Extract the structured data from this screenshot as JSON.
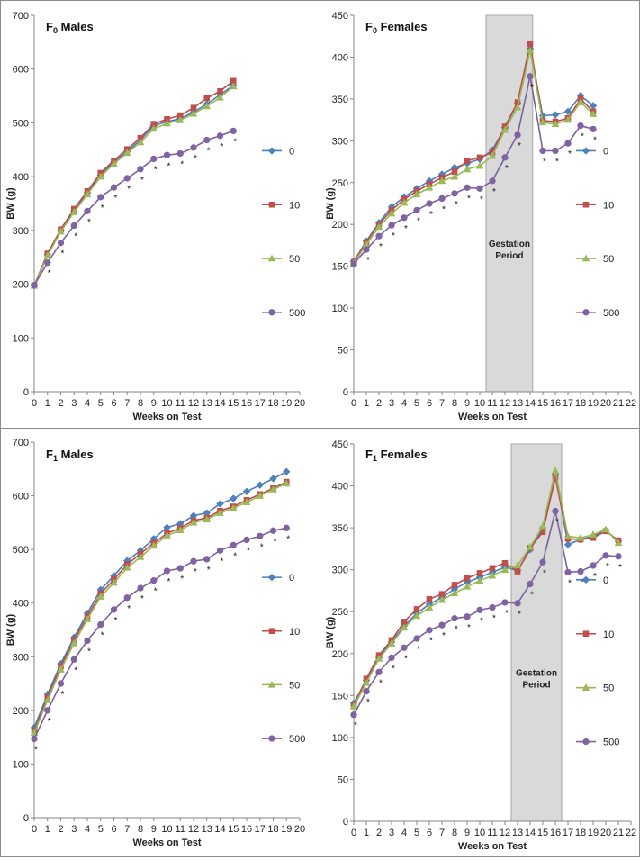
{
  "chart_data": [
    {
      "type": "line",
      "title": "F0 Males",
      "title_main": "F",
      "title_sub": "0",
      "title_rest": " Males",
      "xlabel": "Weeks on Test",
      "ylabel": "BW (g)",
      "ylim": [
        0,
        700
      ],
      "yticks": [
        0,
        100,
        200,
        300,
        400,
        500,
        600,
        700
      ],
      "xlim": [
        0,
        20
      ],
      "x_tick_labels": [
        "0",
        "1",
        "2",
        "3",
        "4",
        "5",
        "6",
        "7",
        "8",
        "9",
        "10",
        "11",
        "12",
        "13",
        "14",
        "15",
        "16",
        "17",
        "18",
        "19",
        "20"
      ],
      "legend_position": "right",
      "gestation": null,
      "series": [
        {
          "name": "0",
          "x": [
            0,
            1,
            2,
            3,
            4,
            5,
            6,
            7,
            8,
            9,
            10,
            11,
            12,
            13,
            14,
            15
          ],
          "values": [
            197,
            255,
            300,
            336,
            370,
            403,
            427,
            447,
            468,
            495,
            502,
            508,
            520,
            535,
            552,
            570
          ]
        },
        {
          "name": "10",
          "x": [
            0,
            1,
            2,
            3,
            4,
            5,
            6,
            7,
            8,
            9,
            10,
            11,
            12,
            13,
            14,
            15
          ],
          "values": [
            198,
            257,
            302,
            340,
            373,
            407,
            430,
            451,
            472,
            498,
            507,
            514,
            528,
            546,
            559,
            578
          ]
        },
        {
          "name": "50",
          "x": [
            0,
            1,
            2,
            3,
            4,
            5,
            6,
            7,
            8,
            9,
            10,
            11,
            12,
            13,
            14,
            15
          ],
          "values": [
            197,
            253,
            298,
            334,
            367,
            400,
            424,
            444,
            464,
            489,
            499,
            505,
            517,
            531,
            547,
            568
          ]
        },
        {
          "name": "500",
          "x": [
            0,
            1,
            2,
            3,
            4,
            5,
            6,
            7,
            8,
            9,
            10,
            11,
            12,
            13,
            14,
            15
          ],
          "values": [
            198,
            240,
            277,
            309,
            336,
            362,
            380,
            397,
            414,
            433,
            440,
            443,
            454,
            468,
            476,
            485
          ]
        }
      ],
      "significance_markers": {
        "symbol": "*",
        "x": [
          1,
          2,
          3,
          4,
          5,
          6,
          7,
          8,
          9,
          10,
          11,
          12,
          13,
          14,
          15
        ]
      }
    },
    {
      "type": "line",
      "title": "F0 Females",
      "title_main": "F",
      "title_sub": "0",
      "title_rest": " Females",
      "xlabel": "Weeks on Test",
      "ylabel": "BW (g)",
      "ylim": [
        0,
        450
      ],
      "yticks": [
        0,
        50,
        100,
        150,
        200,
        250,
        300,
        350,
        400,
        450
      ],
      "xlim": [
        0,
        22
      ],
      "x_tick_labels": [
        "0",
        "1",
        "2",
        "3",
        "4",
        "5",
        "6",
        "7",
        "8",
        "9",
        "10",
        "11",
        "12",
        "13",
        "14",
        "15",
        "16",
        "17",
        "18",
        "19",
        "20",
        "21",
        "22"
      ],
      "legend_position": "right",
      "gestation": {
        "label_line1": "Gestation",
        "label_line2": "Period",
        "x_start": 10.5,
        "x_end": 14.2
      },
      "series": [
        {
          "name": "0",
          "x": [
            0,
            1,
            2,
            3,
            4,
            5,
            6,
            7,
            8,
            9,
            10,
            11,
            12,
            13,
            14,
            15,
            16,
            17,
            18,
            19
          ],
          "values": [
            156,
            180,
            202,
            221,
            233,
            243,
            252,
            260,
            268,
            273,
            278,
            289,
            316,
            345,
            410,
            330,
            331,
            335,
            354,
            342
          ]
        },
        {
          "name": "10",
          "x": [
            0,
            1,
            2,
            3,
            4,
            5,
            6,
            7,
            8,
            9,
            10,
            11,
            12,
            13,
            14,
            15,
            16,
            17,
            18,
            19
          ],
          "values": [
            155,
            179,
            200,
            217,
            230,
            240,
            248,
            256,
            263,
            276,
            280,
            286,
            317,
            346,
            416,
            324,
            323,
            327,
            350,
            335
          ]
        },
        {
          "name": "50",
          "x": [
            0,
            1,
            2,
            3,
            4,
            5,
            6,
            7,
            8,
            9,
            10,
            11,
            12,
            13,
            14,
            15,
            16,
            17,
            18,
            19
          ],
          "values": [
            154,
            176,
            197,
            213,
            226,
            236,
            244,
            252,
            257,
            266,
            270,
            282,
            313,
            340,
            408,
            322,
            320,
            325,
            346,
            332
          ]
        },
        {
          "name": "500",
          "x": [
            0,
            1,
            2,
            3,
            4,
            5,
            6,
            7,
            8,
            9,
            10,
            11,
            12,
            13,
            14,
            15,
            16,
            17,
            18,
            19
          ],
          "values": [
            153,
            170,
            186,
            199,
            208,
            217,
            225,
            231,
            237,
            244,
            243,
            252,
            280,
            307,
            377,
            288,
            288,
            297,
            318,
            314
          ]
        }
      ],
      "significance_markers": {
        "symbol": "*",
        "x": [
          1,
          2,
          3,
          4,
          5,
          6,
          7,
          8,
          9,
          10,
          11,
          12,
          13,
          14,
          15,
          16,
          17,
          18,
          19
        ]
      }
    },
    {
      "type": "line",
      "title": "F1 Males",
      "title_main": "F",
      "title_sub": "1",
      "title_rest": " Males",
      "xlabel": "Weeks on Test",
      "ylabel": "BW (g)",
      "ylim": [
        0,
        700
      ],
      "yticks": [
        0,
        100,
        200,
        300,
        400,
        500,
        600,
        700
      ],
      "xlim": [
        0,
        20
      ],
      "x_tick_labels": [
        "0",
        "1",
        "2",
        "3",
        "4",
        "5",
        "6",
        "7",
        "8",
        "9",
        "10",
        "11",
        "12",
        "13",
        "14",
        "15",
        "16",
        "17",
        "18",
        "19",
        "20"
      ],
      "legend_position": "right",
      "gestation": null,
      "series": [
        {
          "name": "0",
          "x": [
            0,
            1,
            2,
            3,
            4,
            5,
            6,
            7,
            8,
            9,
            10,
            11,
            12,
            13,
            14,
            15,
            16,
            17,
            18,
            19
          ],
          "values": [
            168,
            230,
            287,
            336,
            381,
            425,
            451,
            479,
            498,
            520,
            541,
            548,
            563,
            568,
            585,
            595,
            608,
            620,
            632,
            645
          ]
        },
        {
          "name": "10",
          "x": [
            0,
            1,
            2,
            3,
            4,
            5,
            6,
            7,
            8,
            9,
            10,
            11,
            12,
            13,
            14,
            15,
            16,
            17,
            18,
            19
          ],
          "values": [
            162,
            224,
            282,
            331,
            375,
            418,
            444,
            472,
            492,
            512,
            530,
            540,
            554,
            559,
            572,
            580,
            592,
            603,
            614,
            626
          ]
        },
        {
          "name": "50",
          "x": [
            0,
            1,
            2,
            3,
            4,
            5,
            6,
            7,
            8,
            9,
            10,
            11,
            12,
            13,
            14,
            15,
            16,
            17,
            18,
            19
          ],
          "values": [
            158,
            219,
            276,
            325,
            370,
            412,
            438,
            466,
            486,
            507,
            526,
            536,
            550,
            556,
            568,
            577,
            588,
            600,
            612,
            623
          ]
        },
        {
          "name": "500",
          "x": [
            0,
            1,
            2,
            3,
            4,
            5,
            6,
            7,
            8,
            9,
            10,
            11,
            12,
            13,
            14,
            15,
            16,
            17,
            18,
            19
          ],
          "values": [
            147,
            200,
            250,
            295,
            330,
            360,
            388,
            410,
            428,
            442,
            460,
            465,
            478,
            482,
            498,
            508,
            518,
            525,
            535,
            540
          ]
        }
      ],
      "significance_markers": {
        "symbol": "*",
        "x": [
          0,
          1,
          2,
          3,
          4,
          5,
          6,
          7,
          8,
          9,
          10,
          11,
          12,
          13,
          14,
          15,
          16,
          17,
          18,
          19
        ]
      }
    },
    {
      "type": "line",
      "title": "F1 Females",
      "title_main": "F",
      "title_sub": "1",
      "title_rest": " Females",
      "xlabel": "Weeks on Test",
      "ylabel": "BW (g)",
      "ylim": [
        0,
        450
      ],
      "yticks": [
        0,
        50,
        100,
        150,
        200,
        250,
        300,
        350,
        400,
        450
      ],
      "xlim": [
        0,
        22
      ],
      "x_tick_labels": [
        "0",
        "1",
        "2",
        "3",
        "4",
        "5",
        "6",
        "7",
        "8",
        "9",
        "10",
        "11",
        "12",
        "13",
        "14",
        "15",
        "16",
        "17",
        "18",
        "19",
        "20",
        "21",
        "22"
      ],
      "legend_position": "right",
      "gestation": {
        "label_line1": "Gestation",
        "label_line2": "Period",
        "x_start": 12.5,
        "x_end": 16.5
      },
      "series": [
        {
          "name": "0",
          "x": [
            0,
            1,
            2,
            3,
            4,
            5,
            6,
            7,
            8,
            9,
            10,
            11,
            12,
            13,
            14,
            15,
            16,
            17,
            18,
            19,
            20,
            21
          ],
          "values": [
            141,
            168,
            195,
            214,
            233,
            248,
            259,
            267,
            277,
            285,
            291,
            297,
            303,
            299,
            324,
            350,
            414,
            330,
            336,
            340,
            347,
            334
          ]
        },
        {
          "name": "10",
          "x": [
            0,
            1,
            2,
            3,
            4,
            5,
            6,
            7,
            8,
            9,
            10,
            11,
            12,
            13,
            14,
            15,
            16,
            17,
            18,
            19,
            20,
            21
          ],
          "values": [
            139,
            170,
            198,
            216,
            238,
            253,
            265,
            271,
            282,
            290,
            296,
            302,
            308,
            298,
            326,
            345,
            410,
            337,
            336,
            338,
            346,
            335
          ]
        },
        {
          "name": "50",
          "x": [
            0,
            1,
            2,
            3,
            4,
            5,
            6,
            7,
            8,
            9,
            10,
            11,
            12,
            13,
            14,
            15,
            16,
            17,
            18,
            19,
            20,
            21
          ],
          "values": [
            137,
            165,
            194,
            212,
            231,
            245,
            255,
            264,
            272,
            280,
            287,
            293,
            300,
            305,
            327,
            352,
            418,
            340,
            338,
            342,
            348,
            332
          ]
        },
        {
          "name": "500",
          "x": [
            0,
            1,
            2,
            3,
            4,
            5,
            6,
            7,
            8,
            9,
            10,
            11,
            12,
            13,
            14,
            15,
            16,
            17,
            18,
            19,
            20,
            21
          ],
          "values": [
            127,
            155,
            178,
            195,
            207,
            218,
            228,
            234,
            242,
            244,
            252,
            255,
            261,
            260,
            283,
            309,
            370,
            297,
            298,
            305,
            317,
            316
          ]
        }
      ],
      "significance_markers": {
        "symbol": "*",
        "x": [
          0,
          1,
          2,
          3,
          4,
          5,
          6,
          7,
          8,
          9,
          10,
          11,
          12,
          13,
          14,
          15,
          16,
          17,
          18,
          19,
          20,
          21
        ]
      }
    }
  ],
  "series_style": {
    "0": {
      "color": "#4a7ebb",
      "fill": "#4f81bd",
      "marker": "diamond"
    },
    "10": {
      "color": "#be4b48",
      "fill": "#c0504d",
      "marker": "square"
    },
    "50": {
      "color": "#98b954",
      "fill": "#9bbb59",
      "marker": "triangle"
    },
    "500": {
      "color": "#7d60a0",
      "fill": "#8064a2",
      "marker": "circle"
    }
  },
  "gestation_fill": "#d9d9d9"
}
